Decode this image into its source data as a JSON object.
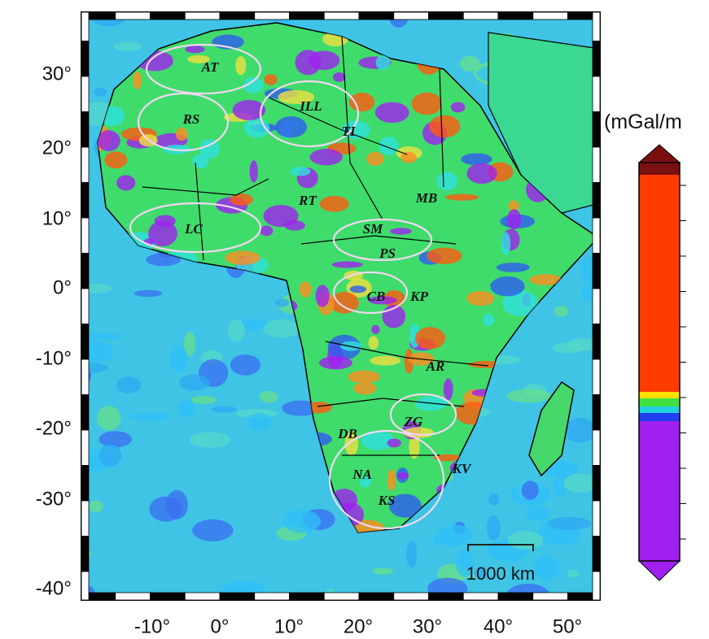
{
  "map": {
    "lon_labels": [
      "-10°",
      "0°",
      "10°",
      "20°",
      "30°",
      "40°",
      "50°"
    ],
    "lat_labels": [
      "30°",
      "20°",
      "10°",
      "0°",
      "-10°",
      "-20°",
      "-30°",
      "-40°"
    ],
    "regions": [
      "AT",
      "RS",
      "ILL",
      "TI",
      "MB",
      "RT",
      "LC",
      "SM",
      "PS",
      "CB",
      "KP",
      "AR",
      "ZG",
      "DB",
      "NA",
      "KS",
      "KV"
    ],
    "scale_bar": "1000 km",
    "colorbar_label": "(mGal/m"
  }
}
